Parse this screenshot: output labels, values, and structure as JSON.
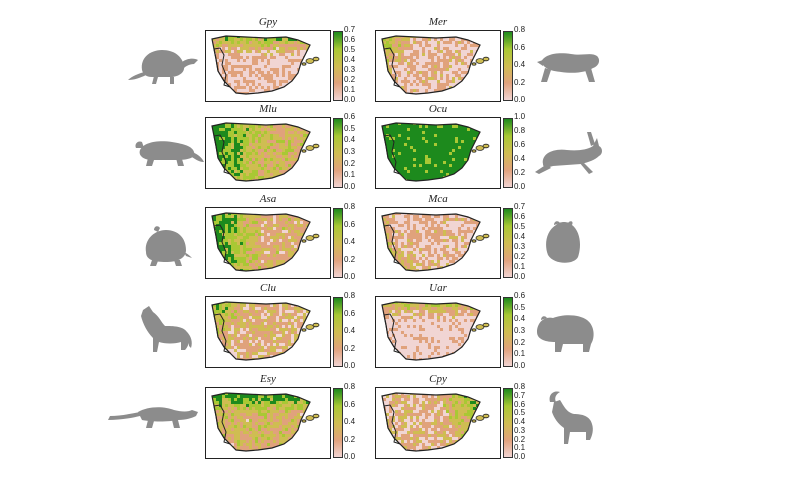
{
  "colors": {
    "low": "#f1d5d3",
    "mid_low": "#e0a27c",
    "mid": "#cfbd52",
    "mid_high": "#a9c834",
    "high": "#1d8a1d",
    "silhouette": "#8c8c8c",
    "coast": "#222222"
  },
  "panels": [
    {
      "title": "Gpy",
      "ticks": [
        "0.7",
        "0.6",
        "0.5",
        "0.4",
        "0.3",
        "0.2",
        "0.1",
        "0.0"
      ],
      "fill_level": 0.25,
      "hotspot": "north",
      "animal_icon": "desman-icon"
    },
    {
      "title": "Mer",
      "ticks": [
        "0.8",
        "0.6",
        "0.4",
        "0.2",
        "0.0"
      ],
      "fill_level": 0.3,
      "hotspot": "northwest",
      "animal_icon": "stoat-icon"
    },
    {
      "title": "Mlu",
      "ticks": [
        "0.6",
        "0.5",
        "0.4",
        "0.3",
        "0.2",
        "0.1",
        "0.0"
      ],
      "fill_level": 0.65,
      "hotspot": "west",
      "animal_icon": "mink-icon"
    },
    {
      "title": "Ocu",
      "ticks": [
        "1.0",
        "0.8",
        "0.6",
        "0.4",
        "0.2",
        "0.0"
      ],
      "fill_level": 0.8,
      "hotspot": "widespread",
      "animal_icon": "rabbit-icon"
    },
    {
      "title": "Asa",
      "ticks": [
        "0.8",
        "0.6",
        "0.4",
        "0.2",
        "0.0"
      ],
      "fill_level": 0.55,
      "hotspot": "west",
      "animal_icon": "vole-icon"
    },
    {
      "title": "Mca",
      "ticks": [
        "0.7",
        "0.6",
        "0.5",
        "0.4",
        "0.3",
        "0.2",
        "0.1",
        "0.0"
      ],
      "fill_level": 0.3,
      "hotspot": "southwest",
      "animal_icon": "marmot-icon"
    },
    {
      "title": "Clu",
      "ticks": [
        "0.8",
        "0.6",
        "0.4",
        "0.2",
        "0.0"
      ],
      "fill_level": 0.45,
      "hotspot": "northwest",
      "animal_icon": "wolf-icon"
    },
    {
      "title": "Uar",
      "ticks": [
        "0.6",
        "0.5",
        "0.4",
        "0.3",
        "0.2",
        "0.1",
        "0.0"
      ],
      "fill_level": 0.1,
      "hotspot": "north",
      "animal_icon": "bear-icon"
    },
    {
      "title": "Esy",
      "ticks": [
        "0.8",
        "0.6",
        "0.4",
        "0.2",
        "0.0"
      ],
      "fill_level": 0.6,
      "hotspot": "north",
      "animal_icon": "weasel-icon"
    },
    {
      "title": "Cpy",
      "ticks": [
        "0.8",
        "0.7",
        "0.6",
        "0.5",
        "0.4",
        "0.3",
        "0.2",
        "0.1",
        "0.0"
      ],
      "fill_level": 0.4,
      "hotspot": "east",
      "animal_icon": "ibex-icon"
    }
  ]
}
